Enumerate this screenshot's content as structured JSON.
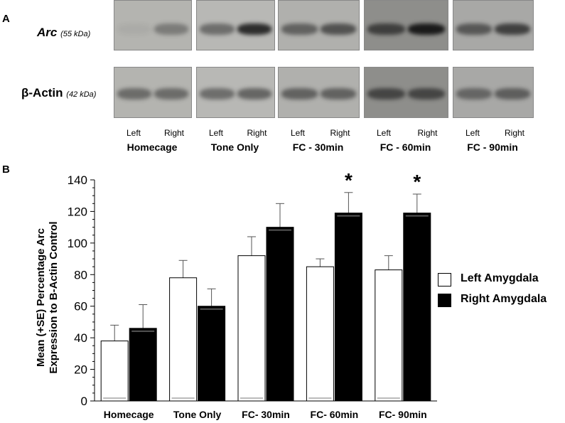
{
  "panel_a": {
    "letter": "A",
    "arc_label": "Arc",
    "arc_kda": "(55 kDa)",
    "actin_label": "β-Actin",
    "actin_kda": "(42 kDa)",
    "lane_left": "Left",
    "lane_right": "Right",
    "groups": [
      "Homecage",
      "Tone Only",
      "FC - 30min",
      "FC - 60min",
      "FC - 90min"
    ],
    "arc_band_intensity": [
      0.05,
      0.35,
      0.45,
      0.85,
      0.5,
      0.6,
      0.65,
      0.95,
      0.55,
      0.7
    ],
    "actin_band_intensity": [
      0.45,
      0.45,
      0.45,
      0.5,
      0.5,
      0.5,
      0.6,
      0.6,
      0.45,
      0.5
    ],
    "blot_tones": [
      "#b4b4b0",
      "#b8b8b5",
      "#b0b0ad",
      "#8e8e8b",
      "#a8a8a6"
    ]
  },
  "panel_b": {
    "letter": "B"
  },
  "chart_data": {
    "type": "bar",
    "categories": [
      "Homecage",
      "Tone Only",
      "FC- 30min",
      "FC- 60min",
      "FC- 90min"
    ],
    "series": [
      {
        "name": "Left Amygdala",
        "values": [
          38,
          78,
          92,
          85,
          83
        ],
        "errors": [
          10,
          11,
          12,
          5,
          9
        ],
        "color": "#ffffff"
      },
      {
        "name": "Right Amygdala",
        "values": [
          46,
          60,
          110,
          119,
          119
        ],
        "errors": [
          15,
          11,
          15,
          13,
          12
        ],
        "color": "#000000"
      }
    ],
    "significance": [
      "",
      "",
      "",
      "*",
      "*"
    ],
    "ylabel_line1": "Mean (+SE) Percentage Arc",
    "ylabel_line2": "Expression to B-Actin Control",
    "xlabel": "",
    "ylim": [
      0,
      140
    ],
    "yticks": [
      0,
      20,
      40,
      60,
      80,
      100,
      120,
      140
    ],
    "grid": false,
    "legend_position": "right"
  }
}
